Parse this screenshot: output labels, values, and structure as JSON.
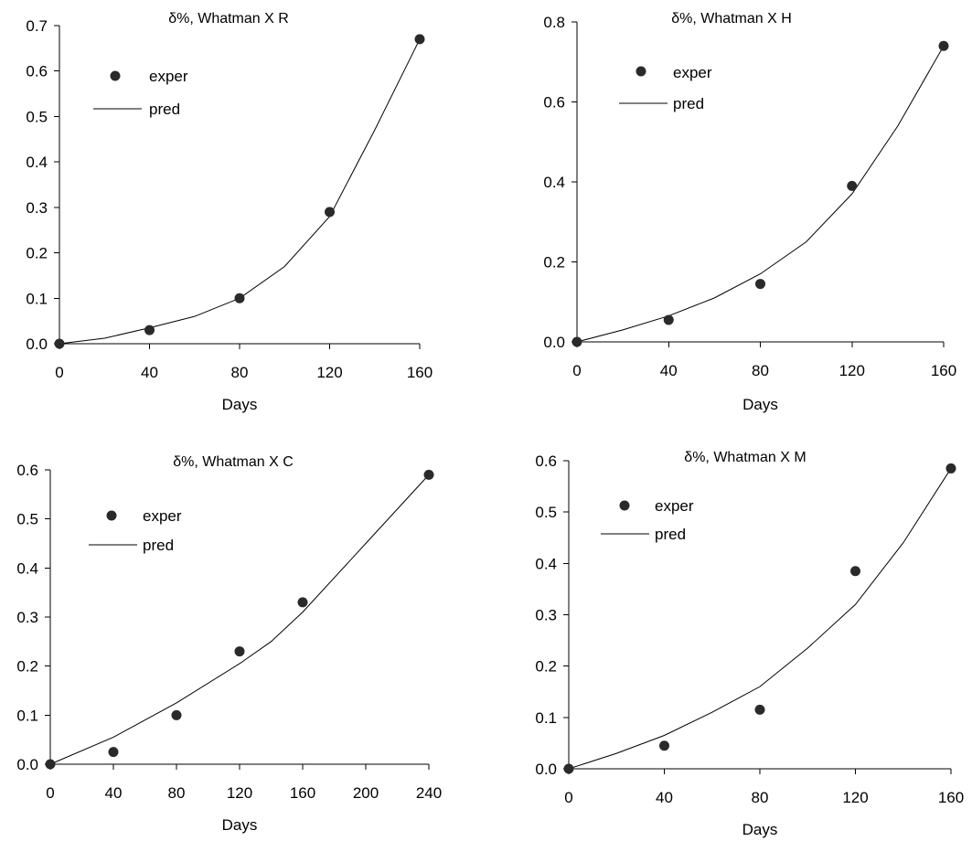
{
  "chart_data": [
    {
      "type": "scatter",
      "title": "δ%, Whatman X R",
      "xlabel": "Days",
      "ylabel": "",
      "xlim": [
        0,
        160
      ],
      "ylim": [
        0,
        0.7
      ],
      "xticks": [
        0,
        40,
        80,
        120,
        160
      ],
      "yticks": [
        "0.0",
        "0.1",
        "0.2",
        "0.3",
        "0.4",
        "0.5",
        "0.6",
        "0.7"
      ],
      "legend": {
        "position": "top-left",
        "entries": [
          "exper",
          "pred"
        ]
      },
      "series": [
        {
          "name": "exper",
          "style": "markers",
          "x": [
            0,
            40,
            80,
            120,
            160
          ],
          "y": [
            0.0,
            0.03,
            0.1,
            0.29,
            0.67
          ]
        },
        {
          "name": "pred",
          "style": "line",
          "x": [
            0,
            20,
            40,
            60,
            80,
            100,
            120,
            140,
            160
          ],
          "y": [
            0.0,
            0.012,
            0.035,
            0.06,
            0.1,
            0.17,
            0.28,
            0.47,
            0.67
          ]
        }
      ]
    },
    {
      "type": "scatter",
      "title": "δ%, Whatman X H",
      "xlabel": "Days",
      "ylabel": "",
      "xlim": [
        0,
        160
      ],
      "ylim": [
        0,
        0.8
      ],
      "xticks": [
        0,
        40,
        80,
        120,
        160
      ],
      "yticks": [
        "0.0",
        "0.2",
        "0.4",
        "0.6",
        "0.8"
      ],
      "legend": {
        "position": "top-left",
        "entries": [
          "exper",
          "pred"
        ]
      },
      "series": [
        {
          "name": "exper",
          "style": "markers",
          "x": [
            0,
            40,
            80,
            120,
            160
          ],
          "y": [
            0.0,
            0.055,
            0.145,
            0.39,
            0.74
          ]
        },
        {
          "name": "pred",
          "style": "line",
          "x": [
            0,
            20,
            40,
            60,
            80,
            100,
            120,
            140,
            160
          ],
          "y": [
            0.0,
            0.03,
            0.065,
            0.11,
            0.17,
            0.25,
            0.37,
            0.54,
            0.74
          ]
        }
      ]
    },
    {
      "type": "scatter",
      "title": "δ%, Whatman X C",
      "xlabel": "Days",
      "ylabel": "",
      "xlim": [
        0,
        240
      ],
      "ylim": [
        0,
        0.6
      ],
      "xticks": [
        0,
        40,
        80,
        120,
        160,
        200,
        240
      ],
      "yticks": [
        "0.0",
        "0.1",
        "0.2",
        "0.3",
        "0.4",
        "0.5",
        "0.6"
      ],
      "legend": {
        "position": "top-left",
        "entries": [
          "exper",
          "pred"
        ]
      },
      "series": [
        {
          "name": "exper",
          "style": "markers",
          "x": [
            0,
            40,
            80,
            120,
            160,
            240
          ],
          "y": [
            0.0,
            0.025,
            0.1,
            0.23,
            0.33,
            0.59
          ]
        },
        {
          "name": "pred",
          "style": "line",
          "x": [
            0,
            40,
            80,
            120,
            140,
            160,
            200,
            240
          ],
          "y": [
            0.0,
            0.055,
            0.125,
            0.205,
            0.25,
            0.31,
            0.45,
            0.59
          ]
        }
      ]
    },
    {
      "type": "scatter",
      "title": "δ%, Whatman X M",
      "xlabel": "Days",
      "ylabel": "",
      "xlim": [
        0,
        160
      ],
      "ylim": [
        0,
        0.6
      ],
      "xticks": [
        0,
        40,
        80,
        120,
        160
      ],
      "yticks": [
        "0.0",
        "0.1",
        "0.2",
        "0.3",
        "0.4",
        "0.5",
        "0.6"
      ],
      "legend": {
        "position": "top-left",
        "entries": [
          "exper",
          "pred"
        ]
      },
      "series": [
        {
          "name": "exper",
          "style": "markers",
          "x": [
            0,
            40,
            80,
            120,
            160
          ],
          "y": [
            0.0,
            0.045,
            0.115,
            0.385,
            0.585
          ]
        },
        {
          "name": "pred",
          "style": "line",
          "x": [
            0,
            20,
            40,
            60,
            80,
            100,
            120,
            140,
            160
          ],
          "y": [
            0.0,
            0.03,
            0.065,
            0.11,
            0.16,
            0.235,
            0.32,
            0.44,
            0.585
          ]
        }
      ]
    }
  ]
}
